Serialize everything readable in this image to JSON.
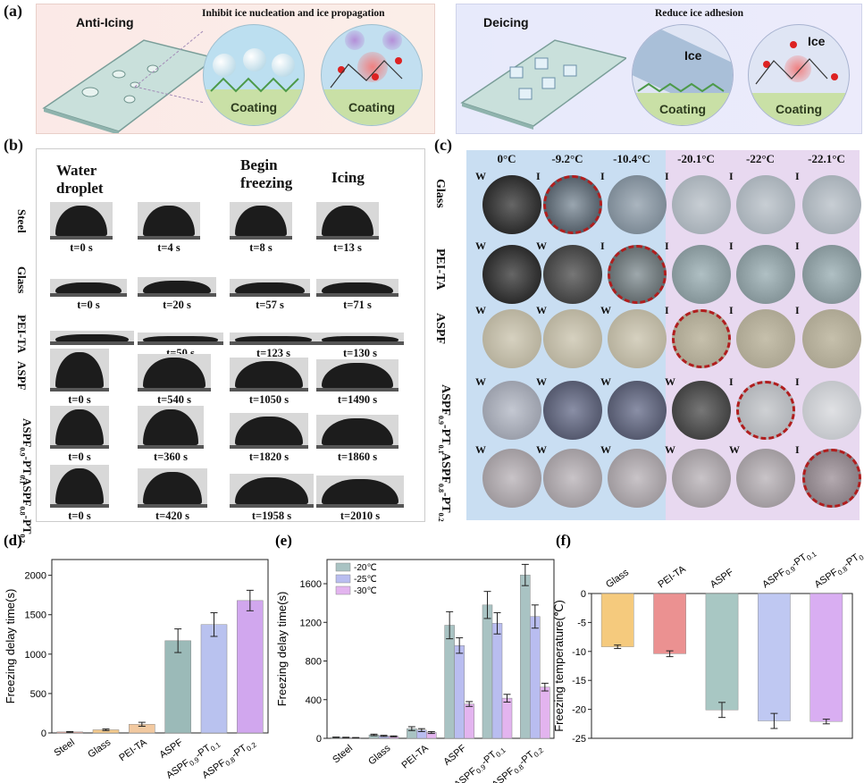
{
  "panel_a": {
    "letter": "(a)",
    "left": {
      "title": "Anti-Icing",
      "subtitle": "Inhibit ice nucleation and ice propagation",
      "coating_labels": [
        "Coating",
        "Coating"
      ]
    },
    "right": {
      "title": "Deicing",
      "subtitle": "Reduce ice adhesion",
      "ice_labels": [
        "Ice",
        "Ice"
      ],
      "coating_labels": [
        "Coating",
        "Coating"
      ]
    }
  },
  "panel_b": {
    "letter": "(b)",
    "headers": [
      "Water droplet",
      "Begin freezing",
      "Icing"
    ],
    "rows": [
      {
        "sample": "Steel",
        "times": [
          "t=0 s",
          "t=4 s",
          "t=8 s",
          "t=13 s"
        ]
      },
      {
        "sample": "Glass",
        "times": [
          "t=0 s",
          "t=20 s",
          "t=57 s",
          "t=71 s"
        ]
      },
      {
        "sample": "PEI-TA",
        "times": [
          "t=0 s",
          "t=50 s",
          "t=123 s",
          "t=130 s"
        ]
      },
      {
        "sample": "ASPF",
        "times": [
          "t=0 s",
          "t=540 s",
          "t=1050 s",
          "t=1490 s"
        ]
      },
      {
        "sample": "ASPF0.9-PT0.1",
        "sample_base": "ASPF",
        "sample_sub1": "0.9",
        "sample_mid": "-PT",
        "sample_sub2": "0.1",
        "times": [
          "t=0 s",
          "t=360 s",
          "t=1820 s",
          "t=1860 s"
        ]
      },
      {
        "sample": "ASPF0.8-PT0.2",
        "sample_base": "ASPF",
        "sample_sub1": "0.8",
        "sample_mid": "-PT",
        "sample_sub2": "0.2",
        "times": [
          "t=0 s",
          "t=420 s",
          "t=1958 s",
          "t=2010 s"
        ]
      }
    ]
  },
  "panel_c": {
    "letter": "(c)",
    "temps": [
      "0°C",
      "-9.2°C",
      "-10.4°C",
      "-20.1°C",
      "-22°C",
      "-22.1°C"
    ],
    "rows": [
      {
        "sample": "Glass",
        "states": [
          "W",
          "I",
          "I",
          "I",
          "I",
          "I"
        ],
        "highlight": 1
      },
      {
        "sample": "PEI-TA",
        "states": [
          "W",
          "W",
          "I",
          "I",
          "I",
          "I"
        ],
        "highlight": 2
      },
      {
        "sample": "ASPF",
        "states": [
          "W",
          "W",
          "W",
          "I",
          "I",
          "I"
        ],
        "highlight": 3
      },
      {
        "sample": "ASPF0.9-PT0.1",
        "sample_base": "ASPF",
        "sample_sub1": "0.9",
        "sample_mid": "-PT",
        "sample_sub2": "0.1",
        "states": [
          "W",
          "W",
          "W",
          "W",
          "I",
          "I"
        ],
        "highlight": 4
      },
      {
        "sample": "ASPF0.8-PT0.2",
        "sample_base": "ASPF",
        "sample_sub1": "0.8",
        "sample_mid": "-PT",
        "sample_sub2": "0.2",
        "states": [
          "W",
          "W",
          "W",
          "W",
          "W",
          "I"
        ],
        "highlight": 5
      }
    ]
  },
  "chart_data": [
    {
      "panel": "(d)",
      "type": "bar",
      "categories": [
        "Steel",
        "Glass",
        "PEI-TA",
        "ASPF",
        "ASPF0.9-PT0.1",
        "ASPF0.8-PT0.2"
      ],
      "values": [
        13,
        40,
        110,
        1170,
        1375,
        1680
      ],
      "errors": [
        5,
        10,
        25,
        150,
        150,
        130
      ],
      "ylabel": "Freezing delay time(s)",
      "ylim": [
        0,
        2200
      ],
      "yticks": [
        0,
        500,
        1000,
        1500,
        2000
      ],
      "colors": [
        "#e8a8a0",
        "#f3c98c",
        "#f2c9a0",
        "#9bbab8",
        "#b9c2ef",
        "#d1a7ee"
      ]
    },
    {
      "panel": "(e)",
      "type": "bar",
      "categories": [
        "Steel",
        "Glass",
        "PEI-TA",
        "ASPF",
        "ASPF0.9-PT0.1",
        "ASPF0.8-PT0.2"
      ],
      "series": [
        {
          "name": "-20℃",
          "values": [
            10,
            35,
            100,
            1170,
            1380,
            1690
          ],
          "errors": [
            3,
            8,
            20,
            140,
            140,
            110
          ]
        },
        {
          "name": "-25℃",
          "values": [
            8,
            25,
            85,
            960,
            1190,
            1260
          ],
          "errors": [
            3,
            6,
            15,
            80,
            110,
            120
          ]
        },
        {
          "name": "-30℃",
          "values": [
            6,
            20,
            60,
            355,
            415,
            530
          ],
          "errors": [
            2,
            5,
            10,
            25,
            40,
            40
          ]
        }
      ],
      "ylabel": "Freezing delay time(s)",
      "ylim": [
        0,
        1850
      ],
      "yticks": [
        0,
        400,
        800,
        1200,
        1600
      ],
      "legend": "top-left",
      "colors": [
        "#a9c3c3",
        "#b9bdf0",
        "#e3b4ef"
      ]
    },
    {
      "panel": "(f)",
      "type": "bar",
      "categories": [
        "Glass",
        "PEI-TA",
        "ASPF",
        "ASPF0.9-PT0.1",
        "ASPF0.8-PT0.2"
      ],
      "values": [
        -9.2,
        -10.4,
        -20.1,
        -22.0,
        -22.1
      ],
      "errors": [
        0.3,
        0.5,
        1.3,
        1.3,
        0.4
      ],
      "ylabel": "Freezing temperature(℃)",
      "ylim": [
        -25,
        0
      ],
      "yticks": [
        0,
        -5,
        -10,
        -15,
        -20,
        -25
      ],
      "colors": [
        "#f4c56f",
        "#e98686",
        "#9fc1bd",
        "#b9c3f1",
        "#d5a6f1"
      ]
    }
  ]
}
